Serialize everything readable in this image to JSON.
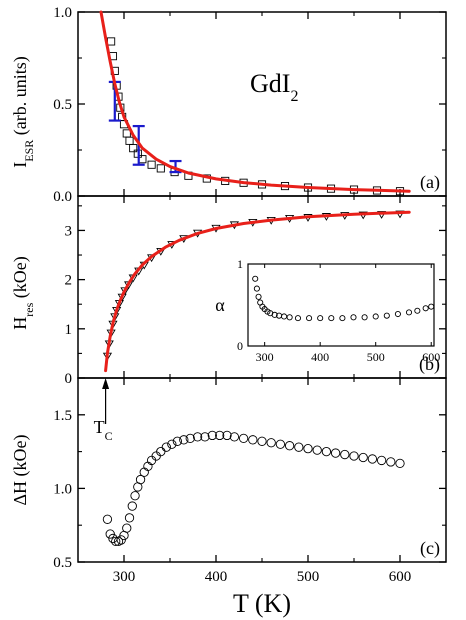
{
  "chart_data": [
    {
      "panel": "(a)",
      "type": "scatter",
      "annotation": "GdI",
      "annotation_subscript": "2",
      "ylabel_main": "I",
      "ylabel_sub": "ESR",
      "ylabel_rest": " (arb. units)",
      "xlim": [
        250,
        650
      ],
      "ylim": [
        0,
        1.0
      ],
      "yticks": [
        "0.0",
        "0.5",
        "1.0"
      ],
      "marker": "square",
      "series_points": [
        {
          "x": [
            286,
            288,
            290,
            292,
            294,
            296,
            298,
            300,
            303,
            306,
            310,
            315,
            320,
            330,
            340,
            355,
            370,
            390,
            410,
            430,
            450,
            475,
            500,
            525,
            550,
            575,
            600
          ],
          "y": [
            0.84,
            0.76,
            0.68,
            0.6,
            0.54,
            0.48,
            0.43,
            0.39,
            0.34,
            0.3,
            0.26,
            0.23,
            0.2,
            0.17,
            0.15,
            0.13,
            0.11,
            0.095,
            0.082,
            0.072,
            0.063,
            0.054,
            0.046,
            0.04,
            0.035,
            0.03,
            0.026
          ]
        }
      ],
      "fit_line": {
        "color": "#e8201a",
        "x": [
          275,
          280,
          285,
          290,
          295,
          300,
          310,
          320,
          335,
          350,
          370,
          400,
          430,
          460,
          500,
          550,
          610
        ],
        "y": [
          1.0,
          0.86,
          0.73,
          0.61,
          0.51,
          0.43,
          0.33,
          0.26,
          0.2,
          0.16,
          0.125,
          0.093,
          0.073,
          0.059,
          0.046,
          0.035,
          0.026
        ]
      },
      "error_bars": {
        "color": "#1a1acc",
        "points": [
          {
            "x": 290,
            "y": 0.52,
            "low": 0.41,
            "high": 0.62
          },
          {
            "x": 316,
            "y": 0.27,
            "low": 0.17,
            "high": 0.38
          },
          {
            "x": 356,
            "y": 0.16,
            "low": 0.13,
            "high": 0.19
          }
        ]
      }
    },
    {
      "panel": "(b)",
      "type": "scatter",
      "ylabel_main": "H",
      "ylabel_sub": "res",
      "ylabel_rest": " (kOe)",
      "xlim": [
        250,
        650
      ],
      "ylim": [
        0,
        3.7
      ],
      "yticks": [
        "0",
        "1",
        "2",
        "3"
      ],
      "marker": "triangle-down",
      "series_points": [
        {
          "x": [
            282,
            284,
            286,
            288,
            290,
            292,
            295,
            298,
            301,
            305,
            310,
            316,
            322,
            330,
            340,
            352,
            365,
            380,
            400,
            420,
            440,
            460,
            480,
            500,
            520,
            540,
            560,
            580,
            600
          ],
          "y": [
            0.45,
            0.7,
            0.92,
            1.1,
            1.25,
            1.38,
            1.52,
            1.65,
            1.78,
            1.9,
            2.04,
            2.18,
            2.3,
            2.45,
            2.58,
            2.72,
            2.84,
            2.95,
            3.05,
            3.12,
            3.17,
            3.21,
            3.25,
            3.27,
            3.29,
            3.31,
            3.32,
            3.33,
            3.34
          ]
        }
      ],
      "fit_line": {
        "color": "#e8201a",
        "x": [
          280,
          282,
          285,
          288,
          292,
          296,
          300,
          306,
          312,
          320,
          330,
          345,
          360,
          380,
          400,
          430,
          460,
          500,
          550,
          610
        ],
        "y": [
          0.15,
          0.5,
          0.85,
          1.12,
          1.38,
          1.58,
          1.75,
          1.95,
          2.12,
          2.3,
          2.47,
          2.66,
          2.8,
          2.94,
          3.04,
          3.14,
          3.21,
          3.28,
          3.33,
          3.37
        ]
      },
      "tc_label": "T",
      "tc_label_sub": "C",
      "tc_x": 280,
      "inset": {
        "type": "scatter",
        "ylabel": "α",
        "xlim": [
          270,
          605
        ],
        "ylim": [
          0,
          1
        ],
        "xticks": [
          "300",
          "400",
          "500",
          "600"
        ],
        "yticks": [
          "0",
          "1"
        ],
        "marker": "circle",
        "x": [
          283,
          286,
          289,
          292,
          296,
          300,
          305,
          310,
          318,
          326,
          335,
          345,
          360,
          380,
          400,
          420,
          440,
          460,
          480,
          500,
          520,
          540,
          560,
          575,
          590,
          600
        ],
        "y": [
          0.82,
          0.7,
          0.6,
          0.53,
          0.48,
          0.45,
          0.42,
          0.4,
          0.38,
          0.37,
          0.36,
          0.35,
          0.34,
          0.34,
          0.34,
          0.34,
          0.34,
          0.35,
          0.35,
          0.36,
          0.37,
          0.39,
          0.41,
          0.43,
          0.46,
          0.48
        ]
      }
    },
    {
      "panel": "(c)",
      "type": "scatter",
      "ylabel": "ΔH (kOe)",
      "xlabel": "T (K)",
      "xlim": [
        250,
        650
      ],
      "ylim": [
        0.5,
        1.75
      ],
      "xticks": [
        "300",
        "400",
        "500",
        "600"
      ],
      "yticks": [
        "0.5",
        "1.0",
        "1.5"
      ],
      "marker": "circle",
      "series_points": [
        {
          "x": [
            282,
            285,
            288,
            291,
            294,
            297,
            300,
            303,
            306,
            309,
            312,
            315,
            318,
            322,
            326,
            330,
            335,
            340,
            346,
            352,
            358,
            365,
            372,
            380,
            388,
            396,
            404,
            412,
            420,
            430,
            440,
            450,
            460,
            470,
            480,
            490,
            500,
            510,
            520,
            530,
            540,
            550,
            560,
            570,
            580,
            590,
            600
          ],
          "y": [
            0.79,
            0.69,
            0.66,
            0.64,
            0.64,
            0.65,
            0.68,
            0.73,
            0.8,
            0.88,
            0.95,
            1.01,
            1.06,
            1.11,
            1.15,
            1.19,
            1.22,
            1.25,
            1.28,
            1.3,
            1.32,
            1.33,
            1.34,
            1.35,
            1.35,
            1.36,
            1.36,
            1.36,
            1.35,
            1.34,
            1.33,
            1.32,
            1.31,
            1.3,
            1.29,
            1.28,
            1.27,
            1.26,
            1.25,
            1.24,
            1.23,
            1.22,
            1.21,
            1.2,
            1.19,
            1.18,
            1.17
          ]
        }
      ]
    }
  ]
}
